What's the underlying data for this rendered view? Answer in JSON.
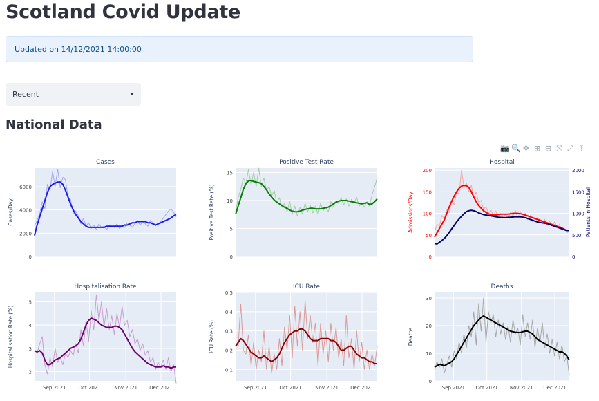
{
  "page": {
    "title": "Scotland Covid Update",
    "section_title": "National Data"
  },
  "info": {
    "text": "Updated on 14/12/2021 14:00:00"
  },
  "select": {
    "value": "Recent"
  },
  "modebar": [
    {
      "name": "camera-icon",
      "glyph": "📷"
    },
    {
      "name": "zoom-icon",
      "glyph": "🔍"
    },
    {
      "name": "pan-icon",
      "glyph": "✥"
    },
    {
      "name": "zoom-in-icon",
      "glyph": "⊞"
    },
    {
      "name": "zoom-out-icon",
      "glyph": "⊟"
    },
    {
      "name": "autoscale-icon",
      "glyph": "⤧"
    },
    {
      "name": "reset-axes-icon",
      "glyph": "⤢"
    },
    {
      "name": "spike-lines-icon",
      "glyph": "⤒"
    }
  ],
  "colors": {
    "plot_bg": "#e5ecf6",
    "grid": "#ffffff",
    "cases": "#1a1ae6",
    "positive": "#0a7a0a",
    "admissions": "#ff0000",
    "patients": "#00006b",
    "hosp_rate": "#6b006b",
    "icu": "#8b0000",
    "deaths": "#000000"
  },
  "chart_data": [
    {
      "type": "line",
      "title": "Cases",
      "ylabel": "Cases/Day",
      "ylim": [
        0,
        7600
      ],
      "yticks": [
        0,
        2000,
        4000,
        6000
      ],
      "x_start": "2021-08-15",
      "x_end": "2021-12-14",
      "xticks": [],
      "series": [
        {
          "style": "raw",
          "color": "#a3a3f5",
          "values": [
            2600,
            3100,
            3700,
            4700,
            4100,
            6200,
            5700,
            7300,
            6000,
            7500,
            5900,
            6800,
            6600,
            5100,
            4900,
            3700,
            3900,
            3500,
            2800,
            3300,
            2600,
            2900,
            2400,
            2700,
            2300,
            2800,
            2500,
            2600,
            2300,
            2700,
            2600,
            2500,
            2800,
            2400,
            2700,
            2500,
            2900,
            2700,
            2500,
            2800,
            3100,
            2700,
            3000,
            2800,
            2600,
            3100,
            2900,
            2700,
            2800,
            3000,
            3300,
            3600,
            3900,
            4100,
            3800,
            3400
          ]
        },
        {
          "style": "avg",
          "color": "#1a1ae6",
          "values": [
            1800,
            2700,
            3400,
            4100,
            4800,
            5500,
            6000,
            6200,
            6300,
            6400,
            6400,
            6200,
            5700,
            5100,
            4500,
            4000,
            3600,
            3300,
            3000,
            2800,
            2600,
            2500,
            2500,
            2500,
            2500,
            2500,
            2500,
            2500,
            2600,
            2600,
            2600,
            2600,
            2600,
            2600,
            2600,
            2700,
            2700,
            2800,
            2900,
            2900,
            3000,
            3000,
            3000,
            3000,
            2900,
            2900,
            2800,
            2700,
            2800,
            2900,
            3000,
            3100,
            3200,
            3300,
            3500,
            3600
          ]
        }
      ]
    },
    {
      "type": "line",
      "title": "Positive Test Rate",
      "ylabel": "Positive Test Rate (%)",
      "ylim": [
        0,
        15.8
      ],
      "yticks": [
        0,
        5,
        10,
        15
      ],
      "x_start": "2021-08-15",
      "x_end": "2021-12-14",
      "xticks": [],
      "series": [
        {
          "style": "raw",
          "color": "#9ccf9c",
          "values": [
            8,
            10.5,
            12,
            14,
            13,
            15.5,
            12.8,
            15,
            12.5,
            15.8,
            12.5,
            14,
            11.8,
            12.5,
            10.8,
            11.8,
            9.5,
            10.5,
            8.8,
            9.5,
            8,
            9.8,
            7.5,
            9,
            7.2,
            8.8,
            7.5,
            9.5,
            8,
            9.2,
            7.8,
            9,
            7.5,
            9.5,
            8.2,
            8.8,
            8,
            9.8,
            8.8,
            10,
            9.5,
            10.5,
            9.2,
            10.3,
            9,
            10.2,
            9.5,
            10.6,
            9,
            9.5,
            8.8,
            9.8,
            9,
            11,
            12.5,
            14
          ]
        },
        {
          "style": "avg",
          "color": "#0a7a0a",
          "values": [
            7.5,
            9,
            10.5,
            12,
            13,
            13.5,
            13.6,
            13.4,
            13.3,
            13.2,
            13,
            12.5,
            11.9,
            11.2,
            10.6,
            10.1,
            9.7,
            9.4,
            9.1,
            8.8,
            8.6,
            8.3,
            8.1,
            8,
            8,
            8.1,
            8.3,
            8.4,
            8.5,
            8.6,
            8.6,
            8.5,
            8.5,
            8.5,
            8.6,
            8.7,
            8.8,
            9.1,
            9.4,
            9.7,
            9.9,
            10,
            10,
            10,
            9.9,
            9.8,
            9.7,
            9.6,
            9.5,
            9.4,
            9.5,
            9.6,
            9.3,
            9.4,
            9.8,
            10.3
          ]
        }
      ]
    },
    {
      "type": "line",
      "title": "Hospital",
      "ylabel": "Admissions/Day",
      "y2label": "Patients in Hospital",
      "ylim": [
        0,
        205
      ],
      "yticks": [
        0,
        50,
        100,
        150,
        200
      ],
      "y2lim": [
        0,
        2050
      ],
      "y2ticks": [
        0,
        500,
        1000,
        1500,
        2000
      ],
      "x_start": "2021-08-15",
      "x_end": "2021-12-14",
      "xticks": [],
      "series": [
        {
          "style": "raw",
          "axis": "y",
          "color": "#f5a3a3",
          "values": [
            55,
            75,
            70,
            95,
            88,
            110,
            102,
            130,
            120,
            150,
            145,
            200,
            160,
            170,
            150,
            165,
            135,
            150,
            125,
            130,
            110,
            115,
            100,
            108,
            95,
            105,
            92,
            100,
            90,
            98,
            88,
            102,
            94,
            106,
            90,
            104,
            92,
            100,
            85,
            95,
            80,
            90,
            78,
            88,
            75,
            86,
            72,
            82,
            70,
            80,
            68,
            75,
            60,
            65,
            55,
            58
          ]
        },
        {
          "style": "avg",
          "axis": "y",
          "color": "#ff0000",
          "values": [
            45,
            55,
            65,
            75,
            85,
            100,
            115,
            128,
            140,
            150,
            158,
            163,
            165,
            164,
            160,
            150,
            138,
            127,
            118,
            112,
            106,
            102,
            99,
            97,
            96,
            96,
            97,
            98,
            98,
            98,
            98,
            99,
            100,
            100,
            100,
            99,
            98,
            96,
            94,
            92,
            90,
            88,
            86,
            84,
            82,
            80,
            78,
            76,
            74,
            72,
            70,
            68,
            66,
            63,
            60,
            60
          ]
        },
        {
          "style": "avg",
          "axis": "y2",
          "color": "#00006b",
          "values": [
            300,
            290,
            330,
            370,
            420,
            480,
            560,
            640,
            720,
            800,
            870,
            930,
            990,
            1040,
            1060,
            1070,
            1060,
            1040,
            1010,
            990,
            970,
            960,
            950,
            940,
            930,
            920,
            910,
            905,
            900,
            900,
            905,
            910,
            915,
            920,
            920,
            920,
            910,
            900,
            880,
            860,
            840,
            820,
            800,
            790,
            780,
            770,
            760,
            740,
            720,
            700,
            680,
            660,
            640,
            620,
            600,
            600
          ]
        }
      ]
    },
    {
      "type": "line",
      "title": "Hospitalisation Rate",
      "ylabel": "Hospitalisation Rate (%)",
      "ylim": [
        1.6,
        5.4
      ],
      "yticks": [
        2,
        3,
        4,
        5
      ],
      "x_start": "2021-08-15",
      "x_end": "2021-12-14",
      "xticks": [
        {
          "date": "2021-09-01",
          "label": "Sep 2021"
        },
        {
          "date": "2021-10-01",
          "label": "Oct 2021"
        },
        {
          "date": "2021-11-01",
          "label": "Nov 2021"
        },
        {
          "date": "2021-12-01",
          "label": "Dec 2021"
        }
      ],
      "series": [
        {
          "style": "raw",
          "color": "#c89ccf",
          "values": [
            2.9,
            2.8,
            3.2,
            3.5,
            2.3,
            1.9,
            2.6,
            2.2,
            3.0,
            2.4,
            2.6,
            2.3,
            2.8,
            2.6,
            2.9,
            2.7,
            3.2,
            2.8,
            3.8,
            3.1,
            4.2,
            3.3,
            4.6,
            3.8,
            5.3,
            4.2,
            5.0,
            3.9,
            4.7,
            3.8,
            4.4,
            3.6,
            4.5,
            3.9,
            4.8,
            4.0,
            4.2,
            3.5,
            3.8,
            3.2,
            3.4,
            2.9,
            3.2,
            2.7,
            2.9,
            2.4,
            2.6,
            2.1,
            2.4,
            2.2,
            2.5,
            2.1,
            2.6,
            2.0,
            2.3,
            1.5
          ]
        },
        {
          "style": "avg",
          "color": "#6b006b",
          "values": [
            2.9,
            2.85,
            2.9,
            2.8,
            2.5,
            2.3,
            2.3,
            2.4,
            2.5,
            2.55,
            2.6,
            2.7,
            2.8,
            2.9,
            3.0,
            3.05,
            3.1,
            3.2,
            3.4,
            3.7,
            4.0,
            4.2,
            4.3,
            4.25,
            4.2,
            4.1,
            4.0,
            3.95,
            3.9,
            3.9,
            3.9,
            3.95,
            3.95,
            3.9,
            3.8,
            3.6,
            3.4,
            3.2,
            3.0,
            2.85,
            2.75,
            2.65,
            2.55,
            2.45,
            2.35,
            2.3,
            2.25,
            2.2,
            2.2,
            2.2,
            2.25,
            2.2,
            2.2,
            2.15,
            2.2,
            2.2
          ]
        }
      ]
    },
    {
      "type": "line",
      "title": "ICU Rate",
      "ylabel": "ICU Rate (%)",
      "ylim": [
        0.04,
        0.5
      ],
      "yticks": [
        0.1,
        0.2,
        0.3,
        0.4,
        0.5
      ],
      "x_start": "2021-08-15",
      "x_end": "2021-12-14",
      "xticks": [
        {
          "date": "2021-09-01",
          "label": "Sep 2021"
        },
        {
          "date": "2021-10-01",
          "label": "Oct 2021"
        },
        {
          "date": "2021-11-01",
          "label": "Nov 2021"
        },
        {
          "date": "2021-12-01",
          "label": "Dec 2021"
        }
      ],
      "series": [
        {
          "style": "raw",
          "color": "#d99a9a",
          "values": [
            0.24,
            0.22,
            0.44,
            0.2,
            0.18,
            0.28,
            0.12,
            0.24,
            0.1,
            0.2,
            0.14,
            0.3,
            0.1,
            0.22,
            0.08,
            0.18,
            0.1,
            0.26,
            0.12,
            0.32,
            0.2,
            0.38,
            0.16,
            0.43,
            0.22,
            0.4,
            0.2,
            0.46,
            0.26,
            0.38,
            0.24,
            0.34,
            0.12,
            0.34,
            0.18,
            0.3,
            0.14,
            0.34,
            0.2,
            0.32,
            0.16,
            0.26,
            0.12,
            0.38,
            0.16,
            0.26,
            0.1,
            0.3,
            0.14,
            0.24,
            0.1,
            0.2,
            0.1,
            0.18,
            0.12,
            0.22
          ]
        },
        {
          "style": "avg",
          "color": "#8b0000",
          "values": [
            0.22,
            0.24,
            0.26,
            0.25,
            0.23,
            0.21,
            0.19,
            0.18,
            0.17,
            0.16,
            0.16,
            0.17,
            0.16,
            0.15,
            0.14,
            0.15,
            0.16,
            0.18,
            0.21,
            0.24,
            0.26,
            0.28,
            0.29,
            0.3,
            0.3,
            0.31,
            0.31,
            0.3,
            0.28,
            0.26,
            0.25,
            0.25,
            0.25,
            0.26,
            0.26,
            0.26,
            0.26,
            0.25,
            0.25,
            0.24,
            0.22,
            0.2,
            0.2,
            0.21,
            0.22,
            0.22,
            0.2,
            0.18,
            0.17,
            0.16,
            0.16,
            0.15,
            0.14,
            0.14,
            0.13,
            0.13
          ]
        }
      ]
    },
    {
      "type": "line",
      "title": "Deaths",
      "ylabel": "Deaths",
      "ylim": [
        0,
        32
      ],
      "yticks": [
        0,
        10,
        20,
        30
      ],
      "x_start": "2021-08-15",
      "x_end": "2021-12-14",
      "xticks": [
        {
          "date": "2021-09-01",
          "label": "Sep 2021"
        },
        {
          "date": "2021-10-01",
          "label": "Oct 2021"
        },
        {
          "date": "2021-11-01",
          "label": "Nov 2021"
        },
        {
          "date": "2021-12-01",
          "label": "Dec 2021"
        }
      ],
      "series": [
        {
          "style": "raw",
          "color": "#a6a6a6",
          "values": [
            4,
            7,
            5,
            8,
            3,
            6,
            9,
            5,
            11,
            8,
            14,
            10,
            17,
            12,
            20,
            16,
            25,
            13,
            28,
            18,
            30,
            14,
            25,
            21,
            24,
            16,
            22,
            17,
            21,
            15,
            20,
            14,
            22,
            17,
            19,
            13,
            24,
            16,
            21,
            15,
            22,
            12,
            19,
            14,
            21,
            12,
            17,
            10,
            15,
            9,
            14,
            8,
            13,
            7,
            9,
            2
          ]
        },
        {
          "style": "avg",
          "color": "#000000",
          "values": [
            5,
            5.5,
            6,
            5.8,
            5.5,
            6,
            6.5,
            7,
            8,
            9.5,
            11,
            12.5,
            14,
            15.5,
            17,
            18.5,
            20,
            21,
            22,
            23,
            23.5,
            23,
            22.5,
            22,
            21.5,
            21,
            20.5,
            20,
            19.5,
            19,
            18.5,
            18,
            17.8,
            17.6,
            17.5,
            17.5,
            17.8,
            18,
            18,
            17.5,
            17,
            16,
            15,
            14.5,
            14,
            13.5,
            13,
            12.5,
            12,
            11.5,
            11,
            10.5,
            10.5,
            10,
            9,
            7.5
          ]
        }
      ]
    }
  ]
}
